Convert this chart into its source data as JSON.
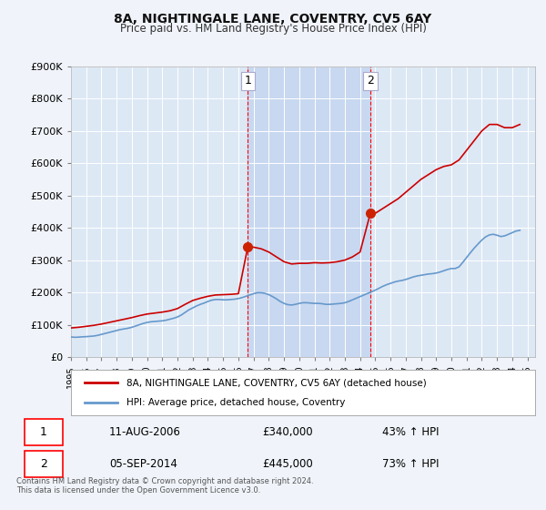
{
  "title": "8A, NIGHTINGALE LANE, COVENTRY, CV5 6AY",
  "subtitle": "Price paid vs. HM Land Registry's House Price Index (HPI)",
  "background_color": "#f0f4fa",
  "plot_bg_color": "#dde8f5",
  "ylabel_color": "#222222",
  "ylim": [
    0,
    900000
  ],
  "yticks": [
    0,
    100000,
    200000,
    300000,
    400000,
    500000,
    600000,
    700000,
    800000,
    900000
  ],
  "ytick_labels": [
    "£0",
    "£100K",
    "£200K",
    "£300K",
    "£400K",
    "£500K",
    "£600K",
    "£700K",
    "£800K",
    "£900K"
  ],
  "xlim_start": 1995.0,
  "xlim_end": 2025.5,
  "transaction1_x": 2006.614,
  "transaction1_y": 340000,
  "transaction2_x": 2014.674,
  "transaction2_y": 445000,
  "transaction1_label": "1",
  "transaction2_label": "2",
  "shade_color": "#c8d8f0",
  "shade_alpha": 0.5,
  "red_line_color": "#cc0000",
  "blue_line_color": "#6699cc",
  "marker_color": "#cc2200",
  "legend_label_red": "8A, NIGHTINGALE LANE, COVENTRY, CV5 6AY (detached house)",
  "legend_label_blue": "HPI: Average price, detached house, Coventry",
  "table_rows": [
    {
      "num": "1",
      "date": "11-AUG-2006",
      "price": "£340,000",
      "note": "43% ↑ HPI"
    },
    {
      "num": "2",
      "date": "05-SEP-2014",
      "price": "£445,000",
      "note": "73% ↑ HPI"
    }
  ],
  "footer": "Contains HM Land Registry data © Crown copyright and database right 2024.\nThis data is licensed under the Open Government Licence v3.0.",
  "hpi_data_x": [
    1995.0,
    1995.25,
    1995.5,
    1995.75,
    1996.0,
    1996.25,
    1996.5,
    1996.75,
    1997.0,
    1997.25,
    1997.5,
    1997.75,
    1998.0,
    1998.25,
    1998.5,
    1998.75,
    1999.0,
    1999.25,
    1999.5,
    1999.75,
    2000.0,
    2000.25,
    2000.5,
    2000.75,
    2001.0,
    2001.25,
    2001.5,
    2001.75,
    2002.0,
    2002.25,
    2002.5,
    2002.75,
    2003.0,
    2003.25,
    2003.5,
    2003.75,
    2004.0,
    2004.25,
    2004.5,
    2004.75,
    2005.0,
    2005.25,
    2005.5,
    2005.75,
    2006.0,
    2006.25,
    2006.5,
    2006.75,
    2007.0,
    2007.25,
    2007.5,
    2007.75,
    2008.0,
    2008.25,
    2008.5,
    2008.75,
    2009.0,
    2009.25,
    2009.5,
    2009.75,
    2010.0,
    2010.25,
    2010.5,
    2010.75,
    2011.0,
    2011.25,
    2011.5,
    2011.75,
    2012.0,
    2012.25,
    2012.5,
    2012.75,
    2013.0,
    2013.25,
    2013.5,
    2013.75,
    2014.0,
    2014.25,
    2014.5,
    2014.75,
    2015.0,
    2015.25,
    2015.5,
    2015.75,
    2016.0,
    2016.25,
    2016.5,
    2016.75,
    2017.0,
    2017.25,
    2017.5,
    2017.75,
    2018.0,
    2018.25,
    2018.5,
    2018.75,
    2019.0,
    2019.25,
    2019.5,
    2019.75,
    2020.0,
    2020.25,
    2020.5,
    2020.75,
    2021.0,
    2021.25,
    2021.5,
    2021.75,
    2022.0,
    2022.25,
    2022.5,
    2022.75,
    2023.0,
    2023.25,
    2023.5,
    2023.75,
    2024.0,
    2024.25,
    2024.5
  ],
  "hpi_data_y": [
    62000,
    61000,
    61500,
    62500,
    63000,
    64000,
    65000,
    67000,
    70000,
    73000,
    76000,
    79000,
    82000,
    85000,
    87000,
    89000,
    92000,
    96000,
    100000,
    104000,
    107000,
    109000,
    110000,
    111000,
    112000,
    114000,
    117000,
    120000,
    124000,
    130000,
    138000,
    146000,
    152000,
    158000,
    163000,
    167000,
    172000,
    176000,
    178000,
    178000,
    177000,
    177000,
    178000,
    179000,
    181000,
    184000,
    188000,
    192000,
    196000,
    199000,
    199000,
    197000,
    193000,
    187000,
    180000,
    172000,
    166000,
    162000,
    161000,
    163000,
    166000,
    168000,
    168000,
    167000,
    166000,
    166000,
    165000,
    163000,
    163000,
    164000,
    165000,
    166000,
    168000,
    172000,
    177000,
    182000,
    187000,
    192000,
    197000,
    202000,
    207000,
    213000,
    219000,
    224000,
    228000,
    232000,
    235000,
    237000,
    240000,
    244000,
    248000,
    251000,
    253000,
    255000,
    257000,
    258000,
    260000,
    263000,
    267000,
    271000,
    274000,
    274000,
    279000,
    293000,
    308000,
    323000,
    337000,
    350000,
    362000,
    372000,
    378000,
    380000,
    377000,
    373000,
    375000,
    380000,
    385000,
    390000,
    392000
  ],
  "price_data_x": [
    1995.0,
    1995.5,
    1996.0,
    1996.5,
    1997.0,
    1997.5,
    1998.0,
    1998.5,
    1999.0,
    1999.5,
    2000.0,
    2000.5,
    2001.0,
    2001.5,
    2002.0,
    2002.5,
    2003.0,
    2003.5,
    2004.0,
    2004.5,
    2005.0,
    2005.5,
    2006.0,
    2006.614,
    2007.0,
    2007.5,
    2008.0,
    2008.5,
    2009.0,
    2009.5,
    2010.0,
    2010.5,
    2011.0,
    2011.5,
    2012.0,
    2012.5,
    2013.0,
    2013.5,
    2014.0,
    2014.674,
    2015.0,
    2015.5,
    2016.0,
    2016.5,
    2017.0,
    2017.5,
    2018.0,
    2018.5,
    2019.0,
    2019.5,
    2020.0,
    2020.5,
    2021.0,
    2021.5,
    2022.0,
    2022.5,
    2023.0,
    2023.5,
    2024.0,
    2024.5
  ],
  "price_data_y": [
    90000,
    92000,
    95000,
    98000,
    102000,
    107000,
    112000,
    117000,
    122000,
    128000,
    133000,
    136000,
    139000,
    143000,
    150000,
    163000,
    175000,
    182000,
    188000,
    192000,
    193000,
    194000,
    196000,
    340000,
    340000,
    335000,
    325000,
    310000,
    295000,
    288000,
    290000,
    290000,
    292000,
    291000,
    292000,
    295000,
    300000,
    310000,
    325000,
    445000,
    445000,
    460000,
    475000,
    490000,
    510000,
    530000,
    550000,
    565000,
    580000,
    590000,
    595000,
    610000,
    640000,
    670000,
    700000,
    720000,
    720000,
    710000,
    710000,
    720000
  ]
}
